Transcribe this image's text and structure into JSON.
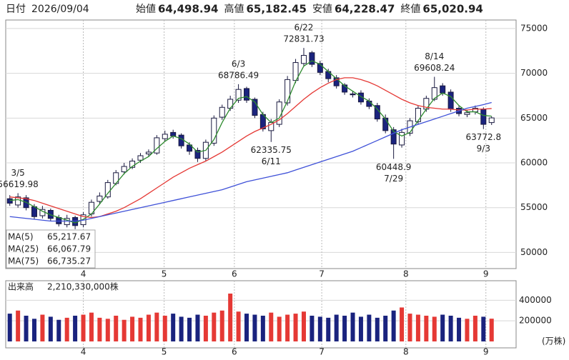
{
  "header": {
    "date_label": "日付",
    "date": "2026/09/04",
    "items": [
      {
        "label": "始値",
        "value": "64,498.94",
        "color": "#000000"
      },
      {
        "label": "高値",
        "value": "65,182.45",
        "color": "#e8000b"
      },
      {
        "label": "安値",
        "value": "64,228.47",
        "color": "#008000"
      },
      {
        "label": "終値",
        "value": "65,020.94",
        "color": "#000000"
      }
    ]
  },
  "chart_data": [
    {
      "type": "candlestick",
      "up_color": "#ffffff",
      "down_color": "#1a237e",
      "edge_color": "#1a1a40",
      "xlim": [
        -0.5,
        62
      ],
      "xticks": [
        {
          "value": 9,
          "label": "4"
        },
        {
          "value": 18.9,
          "label": "5"
        },
        {
          "value": 27.5,
          "label": "6"
        },
        {
          "value": 38.2,
          "label": "7"
        },
        {
          "value": 48.5,
          "label": "8"
        },
        {
          "value": 58.3,
          "label": "9"
        }
      ],
      "ylim": [
        48200,
        75950
      ],
      "yticks": [
        50000,
        55000,
        60000,
        65000,
        70000,
        75000
      ],
      "grid": true,
      "open": [
        56000,
        55300,
        56100,
        55100,
        54100,
        54700,
        53900,
        53100,
        53900,
        53100,
        54300,
        55700,
        56200,
        57700,
        59000,
        59500,
        60300,
        61000,
        61100,
        62700,
        63400,
        63100,
        62000,
        61400,
        60500,
        62200,
        65100,
        66100,
        67000,
        68300,
        67100,
        65400,
        63600,
        64300,
        66700,
        69200,
        71100,
        72300,
        71100,
        70200,
        69500,
        68700,
        67700,
        67800,
        66900,
        66400,
        65000,
        63700,
        62000,
        63300,
        64600,
        66000,
        67100,
        68600,
        67900,
        66100,
        65400,
        65700,
        66000,
        64498.94
      ],
      "high": [
        56400,
        56619.98,
        56400,
        55400,
        55200,
        54900,
        54200,
        54200,
        54100,
        54500,
        55900,
        56700,
        58100,
        59200,
        60000,
        60500,
        61100,
        61500,
        63100,
        63600,
        63700,
        63300,
        62300,
        61700,
        62600,
        65300,
        66500,
        67500,
        68786.49,
        68500,
        67300,
        65700,
        64900,
        67100,
        69700,
        71600,
        72831.73,
        72500,
        71400,
        70500,
        69800,
        68900,
        68000,
        68100,
        67200,
        66700,
        65400,
        64000,
        63800,
        65000,
        66400,
        67500,
        69608.24,
        68900,
        68200,
        66400,
        65900,
        66400,
        66200,
        65182.45
      ],
      "low": [
        55200,
        55000,
        54700,
        53700,
        53800,
        53500,
        52900,
        52800,
        52600,
        52800,
        54000,
        55400,
        56000,
        57500,
        58700,
        59300,
        60000,
        60700,
        60900,
        62400,
        62700,
        61600,
        60900,
        60100,
        60200,
        61900,
        64800,
        65800,
        66700,
        66700,
        65000,
        63500,
        62335.75,
        64000,
        66400,
        68900,
        70800,
        70700,
        69800,
        69000,
        68300,
        67600,
        67300,
        66500,
        66000,
        64600,
        63300,
        60448.9,
        61700,
        63000,
        64300,
        65700,
        66900,
        67500,
        65700,
        65200,
        65100,
        65400,
        63772.8,
        64228.47
      ],
      "close": [
        55500,
        56200,
        55000,
        54000,
        54800,
        53800,
        53200,
        53800,
        53000,
        54200,
        55600,
        56300,
        57800,
        58900,
        59600,
        60200,
        60800,
        61200,
        62800,
        63200,
        63000,
        61900,
        61300,
        60500,
        62300,
        65000,
        66200,
        67100,
        68200,
        67000,
        65300,
        63800,
        64500,
        66800,
        69300,
        71200,
        72000,
        71000,
        70100,
        69400,
        68600,
        67900,
        67600,
        66800,
        66300,
        64900,
        63600,
        62100,
        63400,
        64700,
        66100,
        67200,
        68400,
        67800,
        66000,
        65500,
        65600,
        66100,
        64300,
        65020.94
      ],
      "series": [
        {
          "name": "MA(5)",
          "color": "#2e8b2e",
          "value_label": "65,217.67",
          "values": [
            55800,
            55900,
            55600,
            55100,
            54600,
            54200,
            53900,
            53600,
            53300,
            53700,
            54300,
            55400,
            56600,
            57700,
            58800,
            59600,
            60200,
            60700,
            61600,
            62400,
            63000,
            62700,
            62100,
            61200,
            61400,
            62600,
            64500,
            66100,
            67200,
            67400,
            66800,
            65400,
            64500,
            65000,
            66900,
            69100,
            70800,
            71400,
            71000,
            70200,
            69400,
            68600,
            68000,
            67400,
            66900,
            66000,
            64900,
            63500,
            63000,
            63400,
            64700,
            66000,
            67200,
            67800,
            67400,
            66400,
            65700,
            65700,
            65300,
            65217.67
          ]
        },
        {
          "name": "MA(25)",
          "color": "#e53935",
          "value_label": "66,067.79",
          "values": [
            56200,
            56100,
            56000,
            55800,
            55500,
            55200,
            54900,
            54600,
            54300,
            54000,
            53900,
            54000,
            54300,
            54600,
            55000,
            55500,
            56000,
            56600,
            57200,
            57800,
            58400,
            58900,
            59400,
            59800,
            60200,
            60700,
            61200,
            61800,
            62400,
            63000,
            63500,
            63900,
            64300,
            64800,
            65500,
            66300,
            67100,
            67800,
            68400,
            68900,
            69300,
            69500,
            69500,
            69300,
            69000,
            68600,
            68100,
            67600,
            67100,
            66700,
            66400,
            66200,
            66100,
            66000,
            66000,
            65900,
            65900,
            66000,
            66000,
            66067.79
          ]
        },
        {
          "name": "MA(75)",
          "color": "#3f51d8",
          "value_label": "66,735.27",
          "values": [
            54000,
            53900,
            53800,
            53700,
            53600,
            53500,
            53500,
            53500,
            53500,
            53600,
            53800,
            54000,
            54200,
            54400,
            54600,
            54800,
            55000,
            55200,
            55400,
            55600,
            55800,
            56000,
            56200,
            56400,
            56600,
            56800,
            57000,
            57300,
            57600,
            57900,
            58100,
            58300,
            58500,
            58700,
            58900,
            59200,
            59500,
            59800,
            60100,
            60400,
            60700,
            61000,
            61300,
            61700,
            62100,
            62500,
            62900,
            63300,
            63700,
            64000,
            64300,
            64600,
            64900,
            65200,
            65500,
            65800,
            66100,
            66300,
            66500,
            66735.27
          ]
        }
      ],
      "annotations": [
        {
          "index": 1,
          "date": "3/5",
          "value": 56619.98,
          "side": "above"
        },
        {
          "index": 28,
          "date": "6/3",
          "value": 68786.49,
          "side": "above"
        },
        {
          "index": 36,
          "date": "6/22",
          "value": 72831.73,
          "side": "above"
        },
        {
          "index": 32,
          "date": "6/11",
          "value": 62335.75,
          "side": "below"
        },
        {
          "index": 47,
          "date": "7/29",
          "value": 60448.9,
          "side": "below"
        },
        {
          "index": 52,
          "date": "8/14",
          "value": 69608.24,
          "side": "above"
        },
        {
          "index": 58,
          "date": "9/3",
          "value": 63772.8,
          "side": "below"
        }
      ]
    },
    {
      "type": "bar",
      "title": "出来高",
      "subtitle": "2,210,330,000株",
      "unit_label": "(万株)",
      "up_color": "#e53935",
      "down_color": "#1a237e",
      "ylim": [
        0,
        590000
      ],
      "yticks": [
        200000,
        400000
      ],
      "values": [
        270000,
        300000,
        250000,
        220000,
        260000,
        240000,
        210000,
        230000,
        250000,
        260000,
        280000,
        230000,
        220000,
        250000,
        210000,
        240000,
        230000,
        260000,
        280000,
        250000,
        270000,
        240000,
        230000,
        260000,
        250000,
        280000,
        300000,
        465000,
        290000,
        270000,
        260000,
        250000,
        280000,
        240000,
        260000,
        270000,
        290000,
        250000,
        240000,
        230000,
        260000,
        250000,
        280000,
        240000,
        260000,
        230000,
        250000,
        300000,
        330000,
        270000,
        260000,
        250000,
        240000,
        260000,
        250000,
        230000,
        220000,
        250000,
        240000,
        221033
      ]
    }
  ]
}
